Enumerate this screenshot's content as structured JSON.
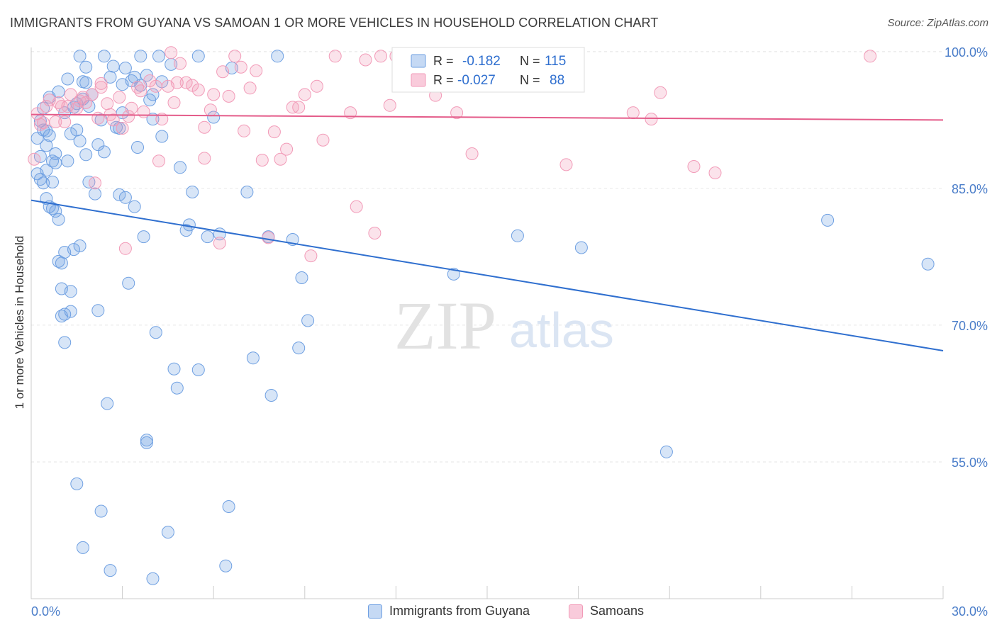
{
  "title": "IMMIGRANTS FROM GUYANA VS SAMOAN 1 OR MORE VEHICLES IN HOUSEHOLD CORRELATION CHART",
  "source": "Source: ZipAtlas.com",
  "watermark": {
    "zip": "ZIP",
    "atlas": "atlas"
  },
  "stats_legend": {
    "row1": {
      "r_label": "R =",
      "r_value": "-0.182",
      "n_label": "N =",
      "n_value": "115"
    },
    "row2": {
      "r_label": "R =",
      "r_value": "-0.027",
      "n_label": "N =",
      "n_value": "88"
    }
  },
  "chart_data": {
    "type": "scatter",
    "title": "IMMIGRANTS FROM GUYANA VS SAMOAN 1 OR MORE VEHICLES IN HOUSEHOLD CORRELATION CHART",
    "xlabel": "",
    "ylabel": "1 or more Vehicles in Household",
    "xlim": [
      0,
      30
    ],
    "ylim": [
      40,
      101
    ],
    "x_tick_labels": [
      "0.0%",
      "30.0%"
    ],
    "y_ticks": [
      55,
      70,
      85,
      100
    ],
    "y_tick_labels": [
      "55.0%",
      "70.0%",
      "85.0%",
      "100.0%"
    ],
    "grid": true,
    "legend_position": "bottom",
    "colors": {
      "guyana": "#6fa0e2",
      "samoans": "#f29bb8",
      "guyana_line": "#2f6fcf",
      "samoans_line": "#e45c8a"
    },
    "series": [
      {
        "name": "Immigrants from Guyana",
        "r": -0.182,
        "n": 115,
        "trend": {
          "x": [
            0,
            30
          ],
          "y": [
            83.7,
            67.2
          ]
        },
        "points": [
          [
            0.2,
            90.5
          ],
          [
            0.2,
            86.6
          ],
          [
            0.3,
            88.5
          ],
          [
            0.3,
            86.0
          ],
          [
            0.4,
            91.4
          ],
          [
            0.4,
            85.6
          ],
          [
            0.5,
            87.0
          ],
          [
            0.5,
            89.7
          ],
          [
            0.5,
            83.9
          ],
          [
            0.6,
            90.8
          ],
          [
            0.6,
            83.0
          ],
          [
            0.7,
            82.8
          ],
          [
            0.7,
            88.0
          ],
          [
            0.7,
            85.7
          ],
          [
            0.8,
            88.8
          ],
          [
            0.8,
            87.8
          ],
          [
            0.8,
            82.5
          ],
          [
            0.9,
            81.6
          ],
          [
            0.9,
            77.0
          ],
          [
            1.0,
            76.8
          ],
          [
            1.0,
            71.0
          ],
          [
            1.0,
            74.0
          ],
          [
            1.1,
            78.0
          ],
          [
            1.1,
            71.2
          ],
          [
            1.1,
            68.1
          ],
          [
            1.2,
            88.0
          ],
          [
            1.2,
            97.0
          ],
          [
            1.3,
            73.7
          ],
          [
            1.3,
            71.5
          ],
          [
            1.4,
            78.3
          ],
          [
            1.5,
            91.4
          ],
          [
            1.5,
            94.3
          ],
          [
            1.6,
            90.2
          ],
          [
            1.6,
            78.7
          ],
          [
            1.7,
            94.8
          ],
          [
            1.7,
            96.7
          ],
          [
            1.8,
            98.3
          ],
          [
            1.8,
            88.7
          ],
          [
            1.9,
            94.0
          ],
          [
            1.9,
            85.7
          ],
          [
            2.1,
            84.4
          ],
          [
            2.2,
            71.6
          ],
          [
            2.3,
            92.5
          ],
          [
            2.4,
            89.0
          ],
          [
            2.6,
            97.2
          ],
          [
            2.8,
            91.7
          ],
          [
            2.9,
            84.3
          ],
          [
            3.0,
            96.4
          ],
          [
            3.1,
            98.2
          ],
          [
            3.1,
            84.0
          ],
          [
            3.2,
            74.6
          ],
          [
            3.4,
            83.0
          ],
          [
            3.5,
            89.5
          ],
          [
            3.6,
            96.3
          ],
          [
            3.7,
            79.7
          ],
          [
            3.8,
            97.4
          ],
          [
            4.0,
            95.3
          ],
          [
            4.0,
            92.6
          ],
          [
            4.1,
            69.2
          ],
          [
            4.3,
            90.7
          ],
          [
            4.6,
            98.6
          ],
          [
            4.7,
            65.2
          ],
          [
            4.8,
            63.1
          ],
          [
            4.9,
            87.3
          ],
          [
            5.1,
            80.4
          ],
          [
            5.2,
            81.0
          ],
          [
            5.3,
            84.6
          ],
          [
            5.5,
            65.1
          ],
          [
            5.8,
            79.7
          ],
          [
            6.0,
            92.8
          ],
          [
            6.2,
            80.0
          ],
          [
            6.6,
            98.2
          ],
          [
            7.1,
            84.6
          ],
          [
            7.3,
            66.4
          ],
          [
            7.8,
            79.7
          ],
          [
            7.9,
            62.3
          ],
          [
            8.6,
            79.4
          ],
          [
            8.8,
            67.5
          ],
          [
            8.9,
            75.2
          ],
          [
            9.1,
            70.5
          ],
          [
            13.9,
            75.6
          ],
          [
            16.0,
            79.8
          ],
          [
            18.1,
            78.5
          ],
          [
            20.9,
            56.1
          ],
          [
            26.2,
            81.5
          ],
          [
            29.5,
            76.7
          ],
          [
            0.4,
            93.8
          ],
          [
            0.9,
            95.6
          ],
          [
            1.6,
            99.5
          ],
          [
            2.4,
            99.5
          ],
          [
            3.6,
            99.5
          ],
          [
            4.2,
            99.5
          ],
          [
            5.5,
            99.5
          ],
          [
            8.1,
            99.5
          ],
          [
            3.3,
            96.8
          ],
          [
            2.7,
            98.4
          ],
          [
            3.9,
            94.7
          ],
          [
            1.3,
            91.0
          ],
          [
            2.5,
            61.4
          ],
          [
            3.8,
            57.1
          ],
          [
            3.8,
            57.4
          ],
          [
            1.5,
            52.6
          ],
          [
            2.3,
            49.6
          ],
          [
            4.5,
            47.3
          ],
          [
            1.7,
            45.6
          ],
          [
            2.6,
            43.1
          ],
          [
            4.0,
            42.2
          ],
          [
            6.4,
            43.6
          ],
          [
            6.5,
            50.1
          ],
          [
            4.3,
            96.7
          ],
          [
            2.0,
            95.3
          ],
          [
            0.6,
            95.0
          ],
          [
            1.4,
            93.9
          ],
          [
            2.9,
            91.6
          ],
          [
            3.4,
            97.2
          ],
          [
            0.3,
            92.4
          ],
          [
            1.8,
            96.6
          ],
          [
            0.5,
            91.3
          ],
          [
            3.0,
            93.3
          ],
          [
            1.1,
            93.3
          ],
          [
            2.2,
            89.8
          ]
        ]
      },
      {
        "name": "Samoans",
        "r": -0.027,
        "n": 88,
        "trend": {
          "x": [
            0,
            30
          ],
          "y": [
            93.1,
            92.5
          ]
        },
        "points": [
          [
            0.1,
            88.2
          ],
          [
            0.2,
            93.2
          ],
          [
            0.3,
            92.0
          ],
          [
            0.5,
            94.0
          ],
          [
            0.6,
            94.7
          ],
          [
            0.8,
            92.3
          ],
          [
            0.9,
            94.4
          ],
          [
            1.0,
            94.0
          ],
          [
            1.1,
            92.3
          ],
          [
            1.3,
            95.3
          ],
          [
            1.5,
            93.8
          ],
          [
            1.7,
            95.0
          ],
          [
            1.8,
            94.4
          ],
          [
            2.0,
            95.3
          ],
          [
            2.1,
            85.6
          ],
          [
            2.2,
            92.7
          ],
          [
            2.3,
            96.5
          ],
          [
            2.5,
            94.3
          ],
          [
            2.7,
            92.5
          ],
          [
            2.9,
            95.0
          ],
          [
            3.0,
            91.6
          ],
          [
            3.1,
            78.4
          ],
          [
            3.2,
            92.9
          ],
          [
            3.3,
            93.8
          ],
          [
            3.5,
            96.1
          ],
          [
            3.6,
            95.7
          ],
          [
            3.7,
            93.4
          ],
          [
            3.9,
            96.8
          ],
          [
            4.1,
            96.2
          ],
          [
            4.3,
            92.6
          ],
          [
            4.5,
            96.2
          ],
          [
            4.6,
            99.9
          ],
          [
            4.7,
            94.4
          ],
          [
            4.8,
            96.6
          ],
          [
            4.9,
            98.7
          ],
          [
            5.1,
            96.6
          ],
          [
            5.3,
            96.3
          ],
          [
            5.5,
            95.8
          ],
          [
            5.7,
            91.7
          ],
          [
            5.9,
            93.6
          ],
          [
            6.0,
            95.3
          ],
          [
            6.2,
            79.0
          ],
          [
            6.3,
            97.8
          ],
          [
            6.5,
            95.1
          ],
          [
            6.7,
            99.5
          ],
          [
            6.9,
            98.3
          ],
          [
            7.0,
            91.3
          ],
          [
            7.2,
            96.0
          ],
          [
            7.4,
            97.9
          ],
          [
            7.6,
            88.1
          ],
          [
            7.8,
            79.6
          ],
          [
            8.0,
            91.2
          ],
          [
            8.2,
            88.2
          ],
          [
            8.4,
            89.3
          ],
          [
            8.6,
            93.9
          ],
          [
            8.8,
            93.9
          ],
          [
            9.0,
            95.3
          ],
          [
            9.2,
            77.6
          ],
          [
            9.4,
            96.2
          ],
          [
            9.6,
            90.3
          ],
          [
            10.0,
            99.5
          ],
          [
            10.5,
            93.3
          ],
          [
            10.7,
            83.0
          ],
          [
            11.0,
            99.1
          ],
          [
            11.3,
            80.1
          ],
          [
            11.5,
            99.5
          ],
          [
            11.8,
            94.1
          ],
          [
            12.0,
            99.5
          ],
          [
            12.5,
            99.5
          ],
          [
            13.1,
            99.5
          ],
          [
            13.3,
            95.2
          ],
          [
            14.0,
            93.3
          ],
          [
            14.5,
            88.8
          ],
          [
            15.2,
            99.5
          ],
          [
            17.6,
            87.6
          ],
          [
            19.8,
            93.3
          ],
          [
            20.4,
            92.6
          ],
          [
            20.7,
            95.5
          ],
          [
            21.8,
            87.4
          ],
          [
            22.5,
            86.7
          ],
          [
            27.6,
            99.5
          ],
          [
            1.6,
            94.6
          ],
          [
            2.3,
            96.1
          ],
          [
            4.2,
            88.0
          ],
          [
            5.7,
            88.3
          ],
          [
            2.6,
            93.1
          ],
          [
            0.4,
            92.2
          ],
          [
            1.2,
            94.0
          ]
        ]
      }
    ]
  },
  "bottom_legend": {
    "items": [
      {
        "label": "Immigrants from Guyana"
      },
      {
        "label": "Samoans"
      }
    ]
  }
}
